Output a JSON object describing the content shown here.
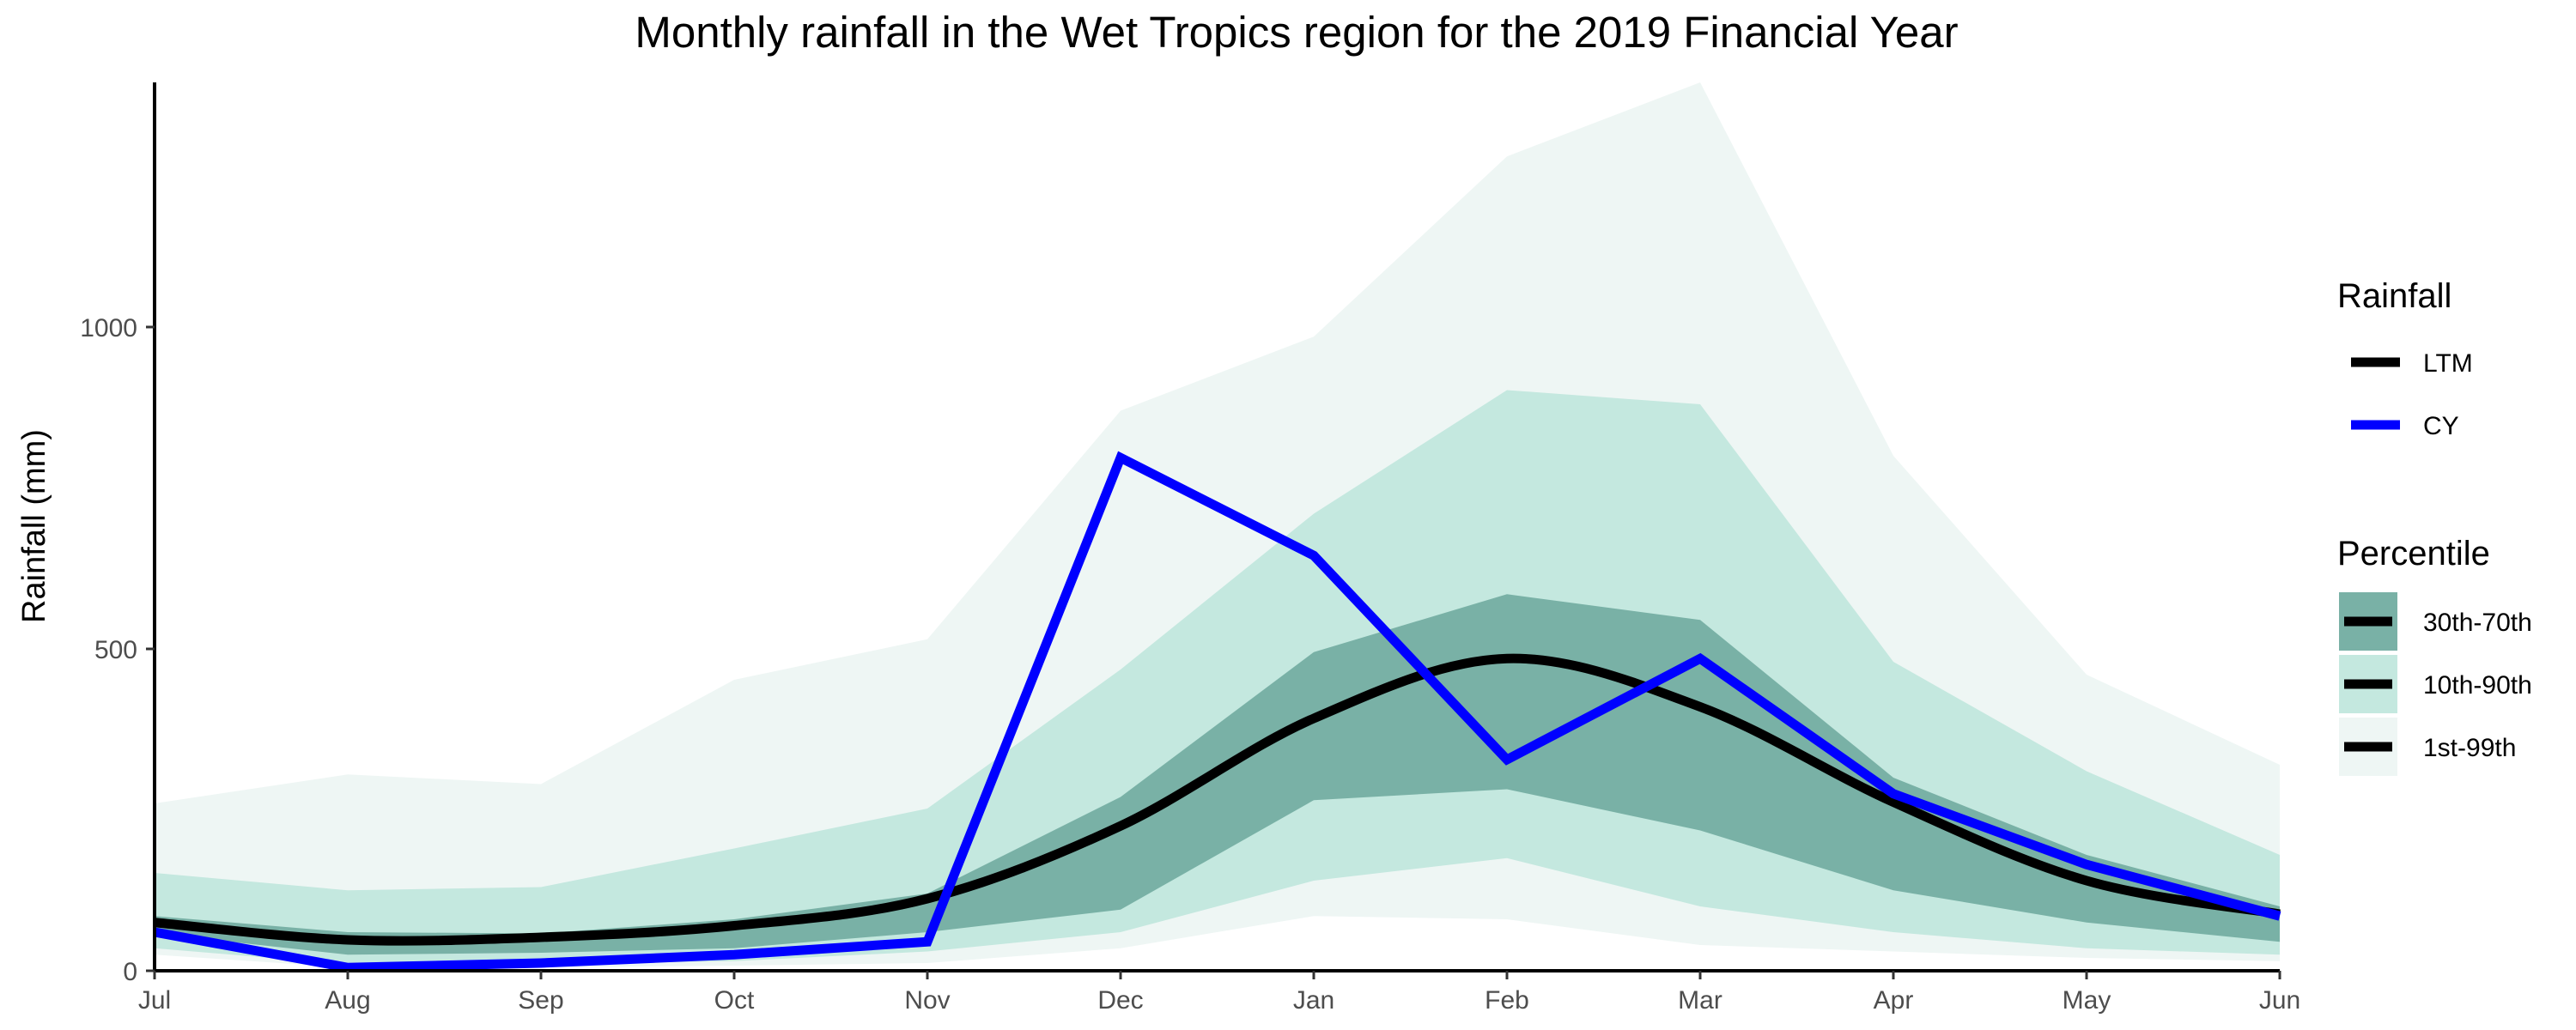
{
  "chart_data": {
    "type": "line",
    "title": "Monthly rainfall in the Wet Tropics region for the 2019 Financial Year",
    "xlabel": "",
    "ylabel": "Rainfall (mm)",
    "categories": [
      "Jul",
      "Aug",
      "Sep",
      "Oct",
      "Nov",
      "Dec",
      "Jan",
      "Feb",
      "Mar",
      "Apr",
      "May",
      "Jun"
    ],
    "ylim": [
      0,
      1380
    ],
    "yticks": [
      0,
      500,
      1000
    ],
    "grid": false,
    "legend_position": "right",
    "series": [
      {
        "name": "LTM",
        "color": "#000000",
        "values": [
          75,
          48,
          52,
          70,
          112,
          225,
          392,
          485,
          410,
          262,
          140,
          88
        ]
      },
      {
        "name": "CY",
        "color": "#0000ff",
        "values": [
          60,
          5,
          12,
          25,
          45,
          797,
          645,
          328,
          485,
          275,
          165,
          85
        ]
      }
    ],
    "bands": [
      {
        "name": "1st-99th",
        "color": "#eef6f4",
        "lower": [
          25,
          5,
          5,
          8,
          12,
          35,
          85,
          80,
          40,
          30,
          20,
          15
        ],
        "upper": [
          260,
          305,
          290,
          452,
          515,
          870,
          985,
          1265,
          1380,
          800,
          460,
          320
        ]
      },
      {
        "name": "10th-90th",
        "color": "#c4e8df",
        "lower": [
          35,
          10,
          10,
          15,
          30,
          60,
          140,
          175,
          100,
          60,
          35,
          25
        ],
        "upper": [
          152,
          125,
          130,
          190,
          252,
          468,
          710,
          902,
          880,
          480,
          310,
          180
        ]
      },
      {
        "name": "30th-70th",
        "color": "#79b1a6",
        "lower": [
          58,
          25,
          28,
          35,
          60,
          95,
          265,
          282,
          218,
          125,
          75,
          45
        ],
        "upper": [
          85,
          60,
          58,
          80,
          120,
          270,
          495,
          585,
          545,
          300,
          180,
          100
        ]
      }
    ],
    "legend": {
      "rainfall_title": "Rainfall",
      "rainfall_items": [
        "LTM",
        "CY"
      ],
      "percentile_title": "Percentile",
      "percentile_items": [
        "30th-70th",
        "10th-90th",
        "1st-99th"
      ]
    }
  }
}
